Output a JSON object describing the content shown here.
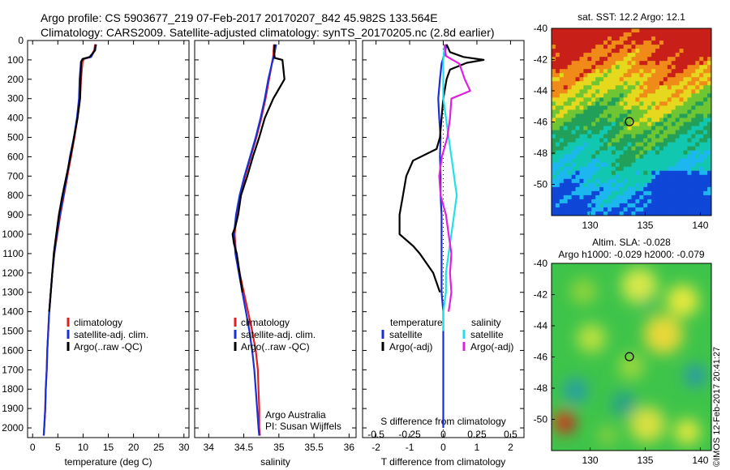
{
  "header": {
    "title_line1": "Argo profile: CS 5903677_219 07-Feb-2017 20170207_842 45.982S 133.564E",
    "title_line2": "Climatology: CARS2009. Satellite-adjusted climatology: synTS_20170205.nc (2.8d earlier)"
  },
  "stamp": "©IMOS 12-Feb-2017 20:41:27",
  "colors": {
    "climatology": "#e02020",
    "satellite": "#1a2fd6",
    "argo": "#000000",
    "satellite_s": "#22e0e8",
    "argo_s": "#e020e0"
  },
  "depth_ticks": [
    0,
    100,
    200,
    300,
    400,
    500,
    600,
    700,
    800,
    900,
    1000,
    1100,
    1200,
    1300,
    1400,
    1500,
    1600,
    1700,
    1800,
    1900,
    2000
  ],
  "chart_data": [
    {
      "type": "line",
      "xlabel": "temperature (deg C)",
      "xlim": [
        -1,
        31
      ],
      "xticks": [
        0,
        5,
        10,
        15,
        20,
        25,
        30
      ],
      "ylim": [
        2050,
        0
      ],
      "legend": [
        "climatology",
        "satellite-adj. clim.",
        "Argo(..raw -QC)"
      ],
      "series": [
        {
          "name": "climatology",
          "points": [
            [
              12.4,
              20
            ],
            [
              12.2,
              50
            ],
            [
              11.5,
              85
            ],
            [
              10.2,
              95
            ],
            [
              9.9,
              110
            ],
            [
              9.6,
              200
            ],
            [
              9.4,
              300
            ],
            [
              8.9,
              400
            ],
            [
              8.3,
              500
            ],
            [
              7.6,
              600
            ],
            [
              6.9,
              700
            ],
            [
              6.2,
              800
            ],
            [
              5.5,
              900
            ],
            [
              4.9,
              1000
            ],
            [
              4.3,
              1100
            ],
            [
              3.9,
              1200
            ],
            [
              3.6,
              1300
            ],
            [
              3.3,
              1400
            ],
            [
              3.1,
              1500
            ],
            [
              2.9,
              1600
            ],
            [
              2.8,
              1700
            ],
            [
              2.6,
              1800
            ],
            [
              2.5,
              1900
            ],
            [
              2.3,
              2000
            ],
            [
              2.2,
              2040
            ]
          ]
        },
        {
          "name": "satellite-adj. clim.",
          "points": [
            [
              12.6,
              20
            ],
            [
              12.3,
              50
            ],
            [
              11.6,
              85
            ],
            [
              10.0,
              95
            ],
            [
              9.6,
              110
            ],
            [
              9.3,
              200
            ],
            [
              9.2,
              300
            ],
            [
              8.8,
              400
            ],
            [
              8.2,
              500
            ],
            [
              7.4,
              600
            ],
            [
              6.8,
              700
            ],
            [
              6.1,
              800
            ],
            [
              5.4,
              900
            ],
            [
              4.8,
              1000
            ],
            [
              4.3,
              1100
            ],
            [
              3.9,
              1200
            ],
            [
              3.6,
              1300
            ],
            [
              3.3,
              1400
            ],
            [
              3.1,
              1500
            ],
            [
              2.9,
              1600
            ],
            [
              2.8,
              1700
            ],
            [
              2.6,
              1800
            ],
            [
              2.5,
              1900
            ],
            [
              2.3,
              2000
            ],
            [
              2.2,
              2040
            ]
          ]
        },
        {
          "name": "Argo(..raw -QC)",
          "points": [
            [
              12.5,
              20
            ],
            [
              12.4,
              50
            ],
            [
              11.3,
              85
            ],
            [
              9.9,
              95
            ],
            [
              9.6,
              110
            ],
            [
              9.5,
              200
            ],
            [
              9.4,
              300
            ],
            [
              8.9,
              400
            ],
            [
              8.2,
              500
            ],
            [
              7.5,
              600
            ],
            [
              6.7,
              700
            ],
            [
              5.9,
              800
            ],
            [
              5.2,
              900
            ],
            [
              4.7,
              1000
            ],
            [
              4.2,
              1100
            ],
            [
              3.9,
              1200
            ],
            [
              3.6,
              1300
            ],
            [
              3.3,
              1400
            ]
          ]
        }
      ]
    },
    {
      "type": "line",
      "xlabel": "salinity",
      "xlim": [
        33.8,
        36.1
      ],
      "xticks": [
        34,
        34.5,
        35,
        35.5,
        36
      ],
      "ylim": [
        2050,
        0
      ],
      "legend": [
        "climatology",
        "satellite-adj. clim.",
        "Argo(..raw -QC)"
      ],
      "annotations": [
        "Argo Australia",
        "PI: Susan Wijffels"
      ],
      "series": [
        {
          "name": "climatology",
          "points": [
            [
              34.93,
              20
            ],
            [
              34.92,
              80
            ],
            [
              34.9,
              120
            ],
            [
              34.86,
              200
            ],
            [
              34.81,
              300
            ],
            [
              34.75,
              400
            ],
            [
              34.68,
              500
            ],
            [
              34.6,
              600
            ],
            [
              34.52,
              700
            ],
            [
              34.45,
              800
            ],
            [
              34.4,
              900
            ],
            [
              34.37,
              1000
            ],
            [
              34.39,
              1100
            ],
            [
              34.44,
              1200
            ],
            [
              34.5,
              1300
            ],
            [
              34.56,
              1400
            ],
            [
              34.62,
              1500
            ],
            [
              34.67,
              1600
            ],
            [
              34.7,
              1700
            ],
            [
              34.71,
              1800
            ],
            [
              34.72,
              1900
            ],
            [
              34.72,
              2000
            ],
            [
              34.73,
              2040
            ]
          ]
        },
        {
          "name": "satellite-adj. clim.",
          "points": [
            [
              34.96,
              20
            ],
            [
              34.93,
              80
            ],
            [
              34.9,
              120
            ],
            [
              34.85,
              200
            ],
            [
              34.8,
              300
            ],
            [
              34.74,
              400
            ],
            [
              34.67,
              500
            ],
            [
              34.59,
              600
            ],
            [
              34.51,
              700
            ],
            [
              34.44,
              800
            ],
            [
              34.39,
              900
            ],
            [
              34.36,
              1000
            ],
            [
              34.38,
              1100
            ],
            [
              34.43,
              1200
            ],
            [
              34.48,
              1300
            ],
            [
              34.53,
              1400
            ],
            [
              34.58,
              1500
            ],
            [
              34.62,
              1600
            ],
            [
              34.65,
              1700
            ],
            [
              34.67,
              1800
            ],
            [
              34.69,
              1900
            ],
            [
              34.71,
              2000
            ],
            [
              34.72,
              2040
            ]
          ]
        },
        {
          "name": "Argo(..raw -QC)",
          "points": [
            [
              34.94,
              20
            ],
            [
              34.93,
              50
            ],
            [
              34.94,
              90
            ],
            [
              35.05,
              100
            ],
            [
              35.08,
              200
            ],
            [
              35.0,
              250
            ],
            [
              34.92,
              300
            ],
            [
              34.8,
              400
            ],
            [
              34.72,
              500
            ],
            [
              34.63,
              600
            ],
            [
              34.55,
              700
            ],
            [
              34.46,
              800
            ],
            [
              34.42,
              900
            ],
            [
              34.38,
              960
            ],
            [
              34.34,
              1000
            ],
            [
              34.36,
              1050
            ],
            [
              34.4,
              1100
            ],
            [
              34.44,
              1200
            ],
            [
              34.48,
              1300
            ]
          ]
        }
      ]
    },
    {
      "type": "line",
      "xlabel": "T difference from climatology",
      "xlim": [
        -2.4,
        2.4
      ],
      "xticks": [
        -2,
        -1,
        0,
        1,
        2
      ],
      "top_label": "S difference from climatology",
      "top_ticks": [
        -0.5,
        -0.25,
        0,
        0.25,
        0.5
      ],
      "ylim": [
        2050,
        0
      ],
      "legend_headers": [
        "temperature",
        "salinity"
      ],
      "legend": [
        "satellite",
        "Argo(-adj)",
        "satellite",
        "Argo(-adj)"
      ],
      "series": [
        {
          "name": "satellite",
          "quantity": "temperature",
          "points": [
            [
              0.1,
              20
            ],
            [
              0.05,
              60
            ],
            [
              -0.05,
              120
            ],
            [
              -0.1,
              200
            ],
            [
              -0.15,
              300
            ],
            [
              -0.12,
              400
            ],
            [
              -0.08,
              500
            ],
            [
              -0.1,
              600
            ],
            [
              -0.08,
              700
            ],
            [
              -0.08,
              800
            ],
            [
              -0.05,
              900
            ],
            [
              -0.05,
              1000
            ],
            [
              -0.05,
              1100
            ],
            [
              -0.05,
              1200
            ],
            [
              -0.05,
              1300
            ],
            [
              0.0,
              1400
            ],
            [
              0.0,
              1500
            ],
            [
              0.0,
              1600
            ],
            [
              0.0,
              1700
            ],
            [
              0.0,
              1800
            ],
            [
              0.0,
              1900
            ],
            [
              0.0,
              2000
            ]
          ]
        },
        {
          "name": "Argo(-adj)",
          "quantity": "temperature",
          "points": [
            [
              0.1,
              20
            ],
            [
              0.2,
              60
            ],
            [
              0.6,
              85
            ],
            [
              1.2,
              100
            ],
            [
              0.7,
              115
            ],
            [
              0.2,
              150
            ],
            [
              0.1,
              200
            ],
            [
              0.0,
              300
            ],
            [
              -0.05,
              400
            ],
            [
              -0.1,
              500
            ],
            [
              -0.2,
              560
            ],
            [
              -0.9,
              620
            ],
            [
              -1.1,
              700
            ],
            [
              -1.2,
              800
            ],
            [
              -1.3,
              900
            ],
            [
              -1.3,
              1000
            ],
            [
              -0.9,
              1060
            ],
            [
              -0.7,
              1100
            ],
            [
              -0.3,
              1200
            ],
            [
              -0.1,
              1300
            ]
          ]
        },
        {
          "name": "satellite",
          "quantity": "salinity",
          "points": [
            [
              0.01,
              20
            ],
            [
              0.0,
              100
            ],
            [
              0.0,
              200
            ],
            [
              0.0,
              300
            ],
            [
              0.02,
              400
            ],
            [
              0.04,
              500
            ],
            [
              0.06,
              600
            ],
            [
              0.08,
              700
            ],
            [
              0.1,
              800
            ],
            [
              0.08,
              900
            ],
            [
              0.06,
              1000
            ],
            [
              0.04,
              1100
            ],
            [
              0.02,
              1200
            ],
            [
              0.02,
              1300
            ],
            [
              0.0,
              1400
            ],
            [
              0.0,
              1500
            ]
          ]
        },
        {
          "name": "Argo(-adj)",
          "quantity": "salinity",
          "points": [
            [
              0.01,
              20
            ],
            [
              0.02,
              80
            ],
            [
              0.12,
              120
            ],
            [
              0.16,
              200
            ],
            [
              0.2,
              260
            ],
            [
              0.06,
              300
            ],
            [
              0.05,
              400
            ],
            [
              0.03,
              500
            ],
            [
              -0.01,
              600
            ],
            [
              -0.03,
              700
            ],
            [
              -0.02,
              800
            ],
            [
              0.02,
              900
            ],
            [
              0.04,
              1000
            ],
            [
              0.06,
              1100
            ],
            [
              0.05,
              1200
            ],
            [
              0.06,
              1300
            ],
            [
              0.04,
              1400
            ]
          ]
        }
      ]
    },
    {
      "type": "heatmap",
      "title": "sat. SST: 12.2  Argo: 12.1",
      "xlim": [
        126.5,
        141
      ],
      "ylim": [
        -52,
        -40
      ],
      "xticks": [
        130,
        135,
        140
      ],
      "yticks": [
        -40,
        -42,
        -44,
        -46,
        -48,
        -50
      ],
      "marker": [
        133.564,
        -45.982
      ]
    },
    {
      "type": "heatmap",
      "title": "Altim. SLA: -0.028",
      "subtitle": "Argo h1000: -0.029  h2000: -0.079",
      "xlim": [
        126.5,
        141
      ],
      "ylim": [
        -52,
        -40
      ],
      "xticks": [
        130,
        135,
        140
      ],
      "yticks": [
        -40,
        -42,
        -44,
        -46,
        -48,
        -50
      ],
      "marker": [
        133.564,
        -45.982
      ]
    }
  ]
}
